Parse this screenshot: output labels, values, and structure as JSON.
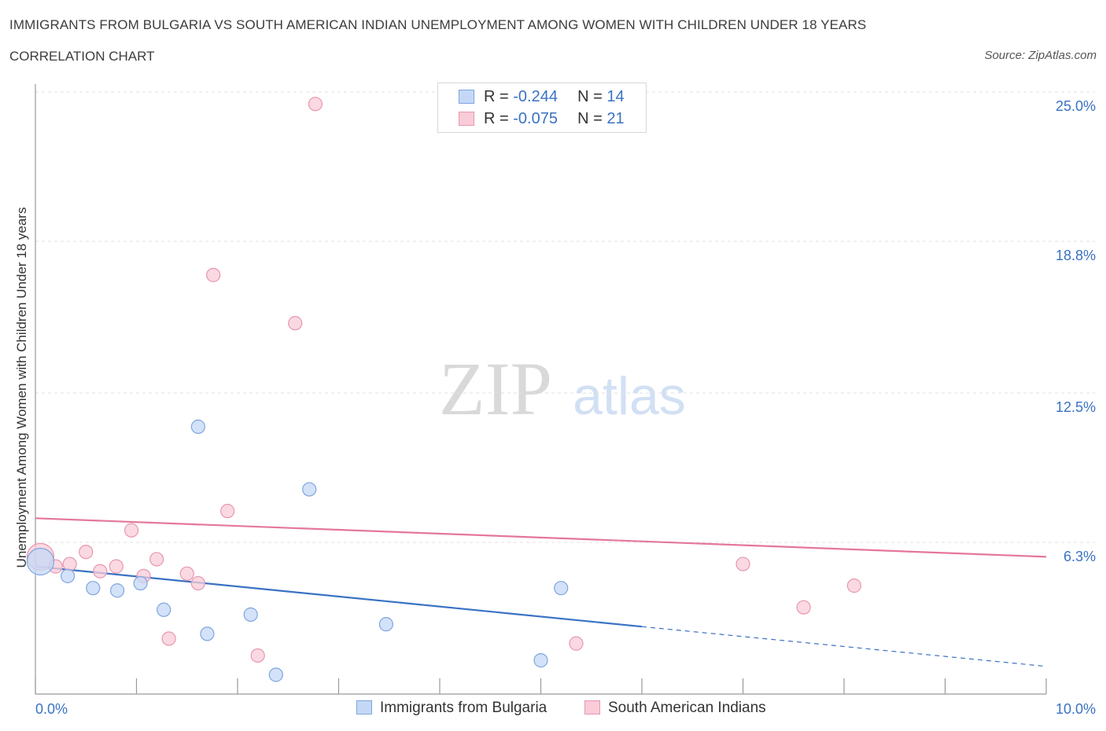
{
  "header": {
    "title": "IMMIGRANTS FROM BULGARIA VS SOUTH AMERICAN INDIAN UNEMPLOYMENT AMONG WOMEN WITH CHILDREN UNDER 18 YEARS",
    "subtitle": "CORRELATION CHART",
    "source": "Source: ZipAtlas.com"
  },
  "watermark": {
    "zip": "ZIP",
    "atlas": "atlas"
  },
  "legend": {
    "r_label": "R = ",
    "n_label": "N = ",
    "rows": [
      {
        "r": "-0.244",
        "n": "14"
      },
      {
        "r": "-0.075",
        "n": "21"
      }
    ]
  },
  "colors": {
    "blue_fill": "#c4d8f6",
    "blue_stroke": "#7fa5e0",
    "blue_line": "#3a72c4",
    "pink_fill": "#f8ccd8",
    "pink_stroke": "#e896ae",
    "pink_line": "#e4779a",
    "tick_label": "#3a72c4",
    "grid": "#e0e0e0"
  },
  "chart_data": {
    "type": "scatter",
    "title": "IMMIGRANTS FROM BULGARIA VS SOUTH AMERICAN INDIAN UNEMPLOYMENT AMONG WOMEN WITH CHILDREN UNDER 18 YEARS",
    "ylabel": "Unemployment Among Women with Children Under 18 years",
    "xlabel": "",
    "xlim": [
      0,
      10
    ],
    "ylim": [
      0,
      25
    ],
    "x_tick_labels": [
      "0.0%",
      "10.0%"
    ],
    "y_ticks": [
      6.3,
      12.5,
      18.8,
      25.0
    ],
    "y_tick_labels": [
      "6.3%",
      "12.5%",
      "18.8%",
      "25.0%"
    ],
    "grid": true,
    "legend_position": "top-center",
    "series": [
      {
        "name": "Immigrants from Bulgaria",
        "points": [
          {
            "x": 0.05,
            "y": 5.5,
            "big": true
          },
          {
            "x": 0.32,
            "y": 4.9
          },
          {
            "x": 0.57,
            "y": 4.4
          },
          {
            "x": 0.81,
            "y": 4.3
          },
          {
            "x": 1.04,
            "y": 4.6
          },
          {
            "x": 1.27,
            "y": 3.5
          },
          {
            "x": 1.61,
            "y": 11.1
          },
          {
            "x": 1.7,
            "y": 2.5
          },
          {
            "x": 2.13,
            "y": 3.3
          },
          {
            "x": 2.38,
            "y": 0.8
          },
          {
            "x": 2.71,
            "y": 8.5
          },
          {
            "x": 3.47,
            "y": 2.9
          },
          {
            "x": 5.0,
            "y": 1.4
          },
          {
            "x": 5.2,
            "y": 4.4
          }
        ],
        "trend": {
          "x0": 0,
          "y0": 5.3,
          "x1": 6.0,
          "y1": 2.8,
          "dash_x1": 10.0,
          "dash_y1": 1.15
        }
      },
      {
        "name": "South American Indians",
        "points": [
          {
            "x": 0.05,
            "y": 5.7,
            "big": true
          },
          {
            "x": 0.2,
            "y": 5.3
          },
          {
            "x": 0.34,
            "y": 5.4
          },
          {
            "x": 0.5,
            "y": 5.9
          },
          {
            "x": 0.64,
            "y": 5.1
          },
          {
            "x": 0.8,
            "y": 5.3
          },
          {
            "x": 0.95,
            "y": 6.8
          },
          {
            "x": 1.07,
            "y": 4.9
          },
          {
            "x": 1.2,
            "y": 5.6
          },
          {
            "x": 1.32,
            "y": 2.3
          },
          {
            "x": 1.5,
            "y": 5.0
          },
          {
            "x": 1.61,
            "y": 4.6
          },
          {
            "x": 1.76,
            "y": 17.4
          },
          {
            "x": 1.9,
            "y": 7.6
          },
          {
            "x": 2.2,
            "y": 1.6
          },
          {
            "x": 2.57,
            "y": 15.4
          },
          {
            "x": 2.77,
            "y": 24.5
          },
          {
            "x": 5.35,
            "y": 2.1
          },
          {
            "x": 7.0,
            "y": 5.4
          },
          {
            "x": 7.6,
            "y": 3.6
          },
          {
            "x": 8.1,
            "y": 4.5
          }
        ],
        "trend": {
          "x0": 0,
          "y0": 7.3,
          "x1": 10.0,
          "y1": 5.7
        }
      }
    ]
  }
}
